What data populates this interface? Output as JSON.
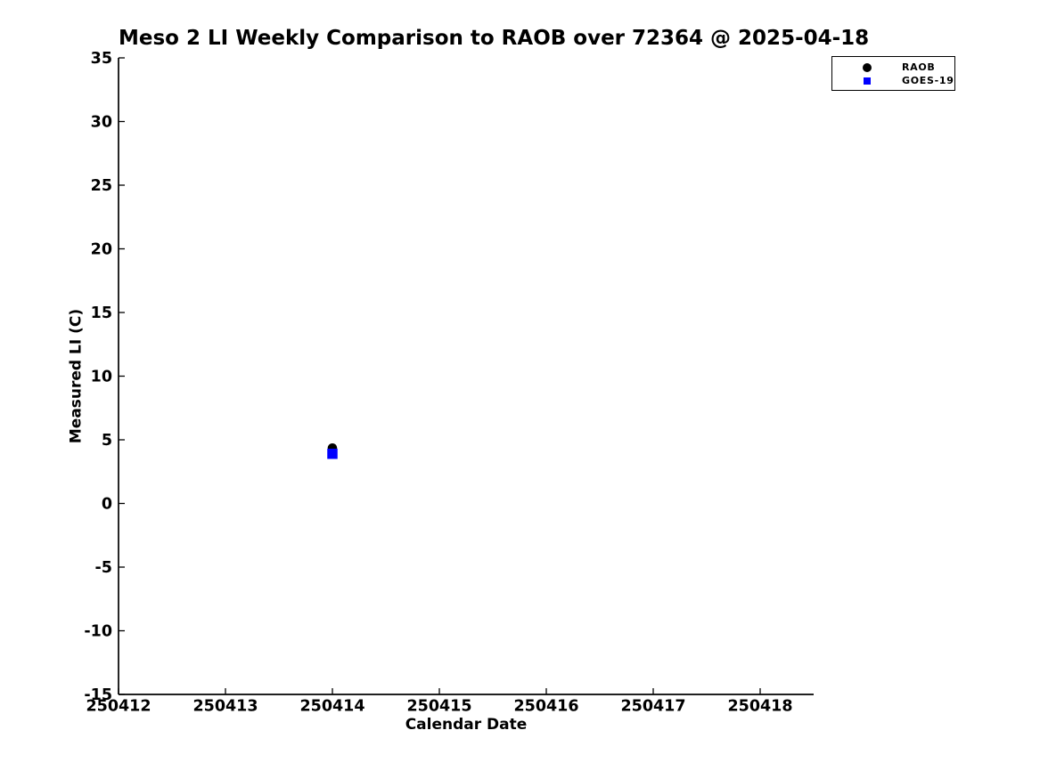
{
  "chart_data": {
    "type": "scatter",
    "title": "Meso 2 LI Weekly Comparison to RAOB over 72364 @ 2025-04-18",
    "xlabel": "Calendar Date",
    "ylabel": "Measured LI (C)",
    "x_ticks": [
      250412,
      250413,
      250414,
      250415,
      250416,
      250417,
      250418
    ],
    "xlim": [
      250412,
      250418.5
    ],
    "ylim": [
      -15,
      35
    ],
    "y_tick_step": 5,
    "grid": false,
    "legend_position": "top-right",
    "axis_color": "#000000",
    "background_color": "#ffffff",
    "series": [
      {
        "name": "RAOB",
        "marker": "circle",
        "color": "#000000",
        "points": [
          {
            "x": 250414,
            "y": 4.35
          }
        ]
      },
      {
        "name": "GOES-19",
        "marker": "square",
        "color": "#0000ff",
        "points": [
          {
            "x": 250414,
            "y": 3.9
          }
        ]
      }
    ]
  }
}
